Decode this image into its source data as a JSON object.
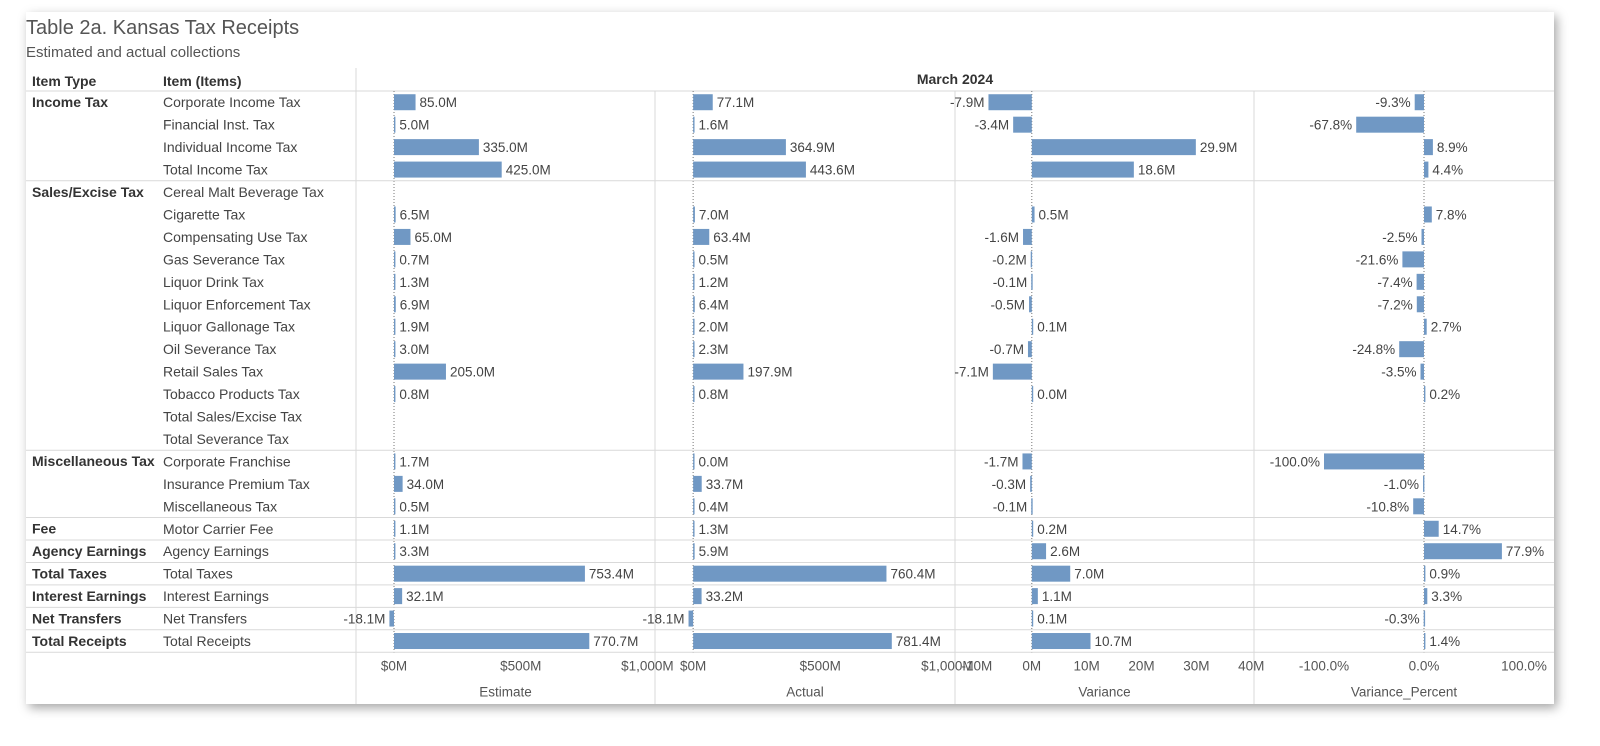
{
  "title": "Table 2a. Kansas Tax Receipts",
  "subtitle": "Estimated and actual collections",
  "headers": {
    "item_type": "Item Type",
    "item": "Item (Items)",
    "period": "March 2024"
  },
  "colors": {
    "bar": "#7098c4",
    "grid": "#d9d9d9",
    "zero": "#777777"
  },
  "chart_data": {
    "type": "bar",
    "orientation": "horizontal",
    "groups": [
      {
        "name": "Income Tax",
        "rows": [
          {
            "item": "Corporate Income Tax",
            "estimate": 85.0,
            "actual": 77.1,
            "variance": -7.9,
            "variance_pct": -9.3
          },
          {
            "item": "Financial Inst. Tax",
            "estimate": 5.0,
            "actual": 1.6,
            "variance": -3.4,
            "variance_pct": -67.8
          },
          {
            "item": "Individual Income Tax",
            "estimate": 335.0,
            "actual": 364.9,
            "variance": 29.9,
            "variance_pct": 8.9
          },
          {
            "item": "Total Income Tax",
            "estimate": 425.0,
            "actual": 443.6,
            "variance": 18.6,
            "variance_pct": 4.4
          }
        ]
      },
      {
        "name": "Sales/Excise Tax",
        "rows": [
          {
            "item": "Cereal Malt Beverage Tax",
            "estimate": null,
            "actual": null,
            "variance": null,
            "variance_pct": null
          },
          {
            "item": "Cigarette Tax",
            "estimate": 6.5,
            "actual": 7.0,
            "variance": 0.5,
            "variance_pct": 7.8
          },
          {
            "item": "Compensating Use Tax",
            "estimate": 65.0,
            "actual": 63.4,
            "variance": -1.6,
            "variance_pct": -2.5
          },
          {
            "item": "Gas Severance Tax",
            "estimate": 0.7,
            "actual": 0.5,
            "variance": -0.2,
            "variance_pct": -21.6
          },
          {
            "item": "Liquor Drink Tax",
            "estimate": 1.3,
            "actual": 1.2,
            "variance": -0.1,
            "variance_pct": -7.4
          },
          {
            "item": "Liquor Enforcement Tax",
            "estimate": 6.9,
            "actual": 6.4,
            "variance": -0.5,
            "variance_pct": -7.2
          },
          {
            "item": "Liquor Gallonage Tax",
            "estimate": 1.9,
            "actual": 2.0,
            "variance": 0.1,
            "variance_pct": 2.7
          },
          {
            "item": "Oil Severance Tax",
            "estimate": 3.0,
            "actual": 2.3,
            "variance": -0.7,
            "variance_pct": -24.8
          },
          {
            "item": "Retail Sales Tax",
            "estimate": 205.0,
            "actual": 197.9,
            "variance": -7.1,
            "variance_pct": -3.5
          },
          {
            "item": "Tobacco Products Tax",
            "estimate": 0.8,
            "actual": 0.8,
            "variance": 0.0,
            "variance_pct": 0.2
          },
          {
            "item": "Total Sales/Excise Tax",
            "estimate": null,
            "actual": null,
            "variance": null,
            "variance_pct": null
          },
          {
            "item": "Total Severance Tax",
            "estimate": null,
            "actual": null,
            "variance": null,
            "variance_pct": null
          }
        ]
      },
      {
        "name": "Miscellaneous Tax",
        "rows": [
          {
            "item": "Corporate Franchise",
            "estimate": 1.7,
            "actual": 0.0,
            "variance": -1.7,
            "variance_pct": -100.0
          },
          {
            "item": "Insurance Premium Tax",
            "estimate": 34.0,
            "actual": 33.7,
            "variance": -0.3,
            "variance_pct": -1.0
          },
          {
            "item": "Miscellaneous Tax",
            "estimate": 0.5,
            "actual": 0.4,
            "variance": -0.1,
            "variance_pct": -10.8
          }
        ]
      },
      {
        "name": "Fee",
        "rows": [
          {
            "item": "Motor Carrier Fee",
            "estimate": 1.1,
            "actual": 1.3,
            "variance": 0.2,
            "variance_pct": 14.7
          }
        ]
      },
      {
        "name": "Agency Earnings",
        "rows": [
          {
            "item": "Agency Earnings",
            "estimate": 3.3,
            "actual": 5.9,
            "variance": 2.6,
            "variance_pct": 77.9
          }
        ]
      },
      {
        "name": "Total Taxes",
        "rows": [
          {
            "item": "Total Taxes",
            "estimate": 753.4,
            "actual": 760.4,
            "variance": 7.0,
            "variance_pct": 0.9
          }
        ]
      },
      {
        "name": "Interest Earnings",
        "rows": [
          {
            "item": "Interest Earnings",
            "estimate": 32.1,
            "actual": 33.2,
            "variance": 1.1,
            "variance_pct": 3.3
          }
        ]
      },
      {
        "name": "Net Transfers",
        "rows": [
          {
            "item": "Net Transfers",
            "estimate": -18.1,
            "actual": -18.1,
            "variance": 0.1,
            "variance_pct": -0.3
          }
        ]
      },
      {
        "name": "Total Receipts",
        "rows": [
          {
            "item": "Total Receipts",
            "estimate": 770.7,
            "actual": 781.4,
            "variance": 10.7,
            "variance_pct": 1.4
          }
        ]
      }
    ],
    "panels": [
      {
        "key": "estimate",
        "label": "Estimate",
        "unit": "M",
        "xlim": [
          -150,
          1030
        ],
        "ticks": [
          0,
          500,
          1000
        ],
        "tick_labels": [
          "$0M",
          "$500M",
          "$1,000M"
        ]
      },
      {
        "key": "actual",
        "label": "Actual",
        "unit": "M",
        "xlim": [
          -150,
          1030
        ],
        "ticks": [
          0,
          500,
          1000
        ],
        "tick_labels": [
          "$0M",
          "$500M",
          "$1,000M"
        ]
      },
      {
        "key": "variance",
        "label": "Variance",
        "unit": "M",
        "xlim": [
          -14,
          40.5
        ],
        "ticks": [
          -10,
          0,
          10,
          20,
          30,
          40
        ],
        "tick_labels": [
          "-10M",
          "0M",
          "10M",
          "20M",
          "30M",
          "40M"
        ]
      },
      {
        "key": "variance_pct",
        "label": "Variance_Percent",
        "unit": "%",
        "xlim": [
          -170,
          130
        ],
        "ticks": [
          -100,
          0,
          100
        ],
        "tick_labels": [
          "-100.0%",
          "0.0%",
          "100.0%"
        ]
      }
    ]
  }
}
